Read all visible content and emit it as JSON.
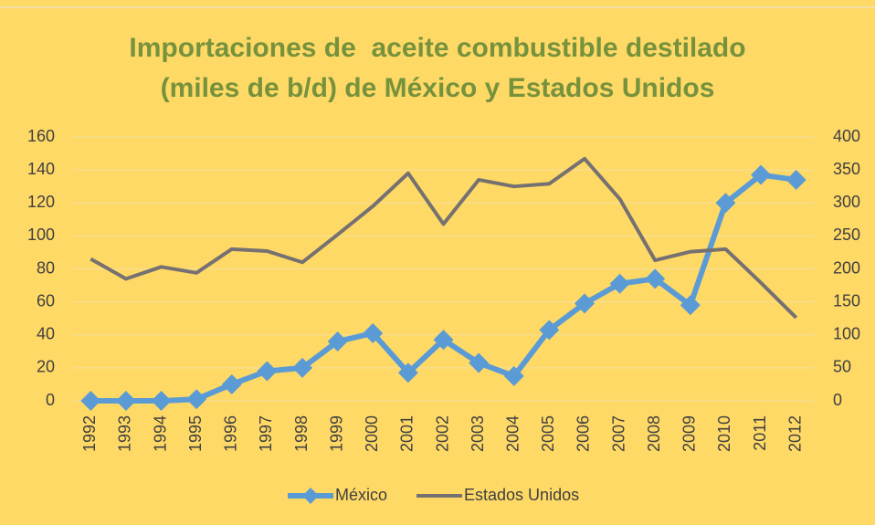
{
  "chart_data": {
    "type": "line",
    "title": [
      "Importaciones de  aceite combustible destilado",
      "(miles de b/d) de México y Estados Unidos"
    ],
    "categories": [
      "1992",
      "1993",
      "1994",
      "1995",
      "1996",
      "1997",
      "1998",
      "1999",
      "2000",
      "2001",
      "2002",
      "2003",
      "2004",
      "2005",
      "2006",
      "2007",
      "2008",
      "2009",
      "2010",
      "2011",
      "2012"
    ],
    "series": [
      {
        "name": "México",
        "color": "#5b9bd5",
        "marker": "diamond",
        "values": [
          0,
          0,
          0,
          1,
          10,
          18,
          20,
          36,
          41,
          17,
          37,
          23,
          15,
          43,
          59,
          71,
          74,
          58,
          120,
          137,
          134
        ]
      },
      {
        "name": "Estados Unidos",
        "color": "#767171",
        "axis": "y2",
        "values": [
          215,
          185,
          203,
          194,
          230,
          227,
          210,
          252,
          295,
          345,
          268,
          335,
          325,
          329,
          367,
          306,
          213,
          226,
          230,
          179,
          126
        ]
      }
    ],
    "ylim": [
      0,
      160
    ],
    "yticks": [
      0,
      20,
      40,
      60,
      80,
      100,
      120,
      140,
      160
    ],
    "y2lim": [
      0,
      400
    ],
    "y2ticks": [
      0,
      50,
      100,
      150,
      200,
      250,
      300,
      350,
      400
    ],
    "grid": true,
    "legend": "bottom"
  }
}
